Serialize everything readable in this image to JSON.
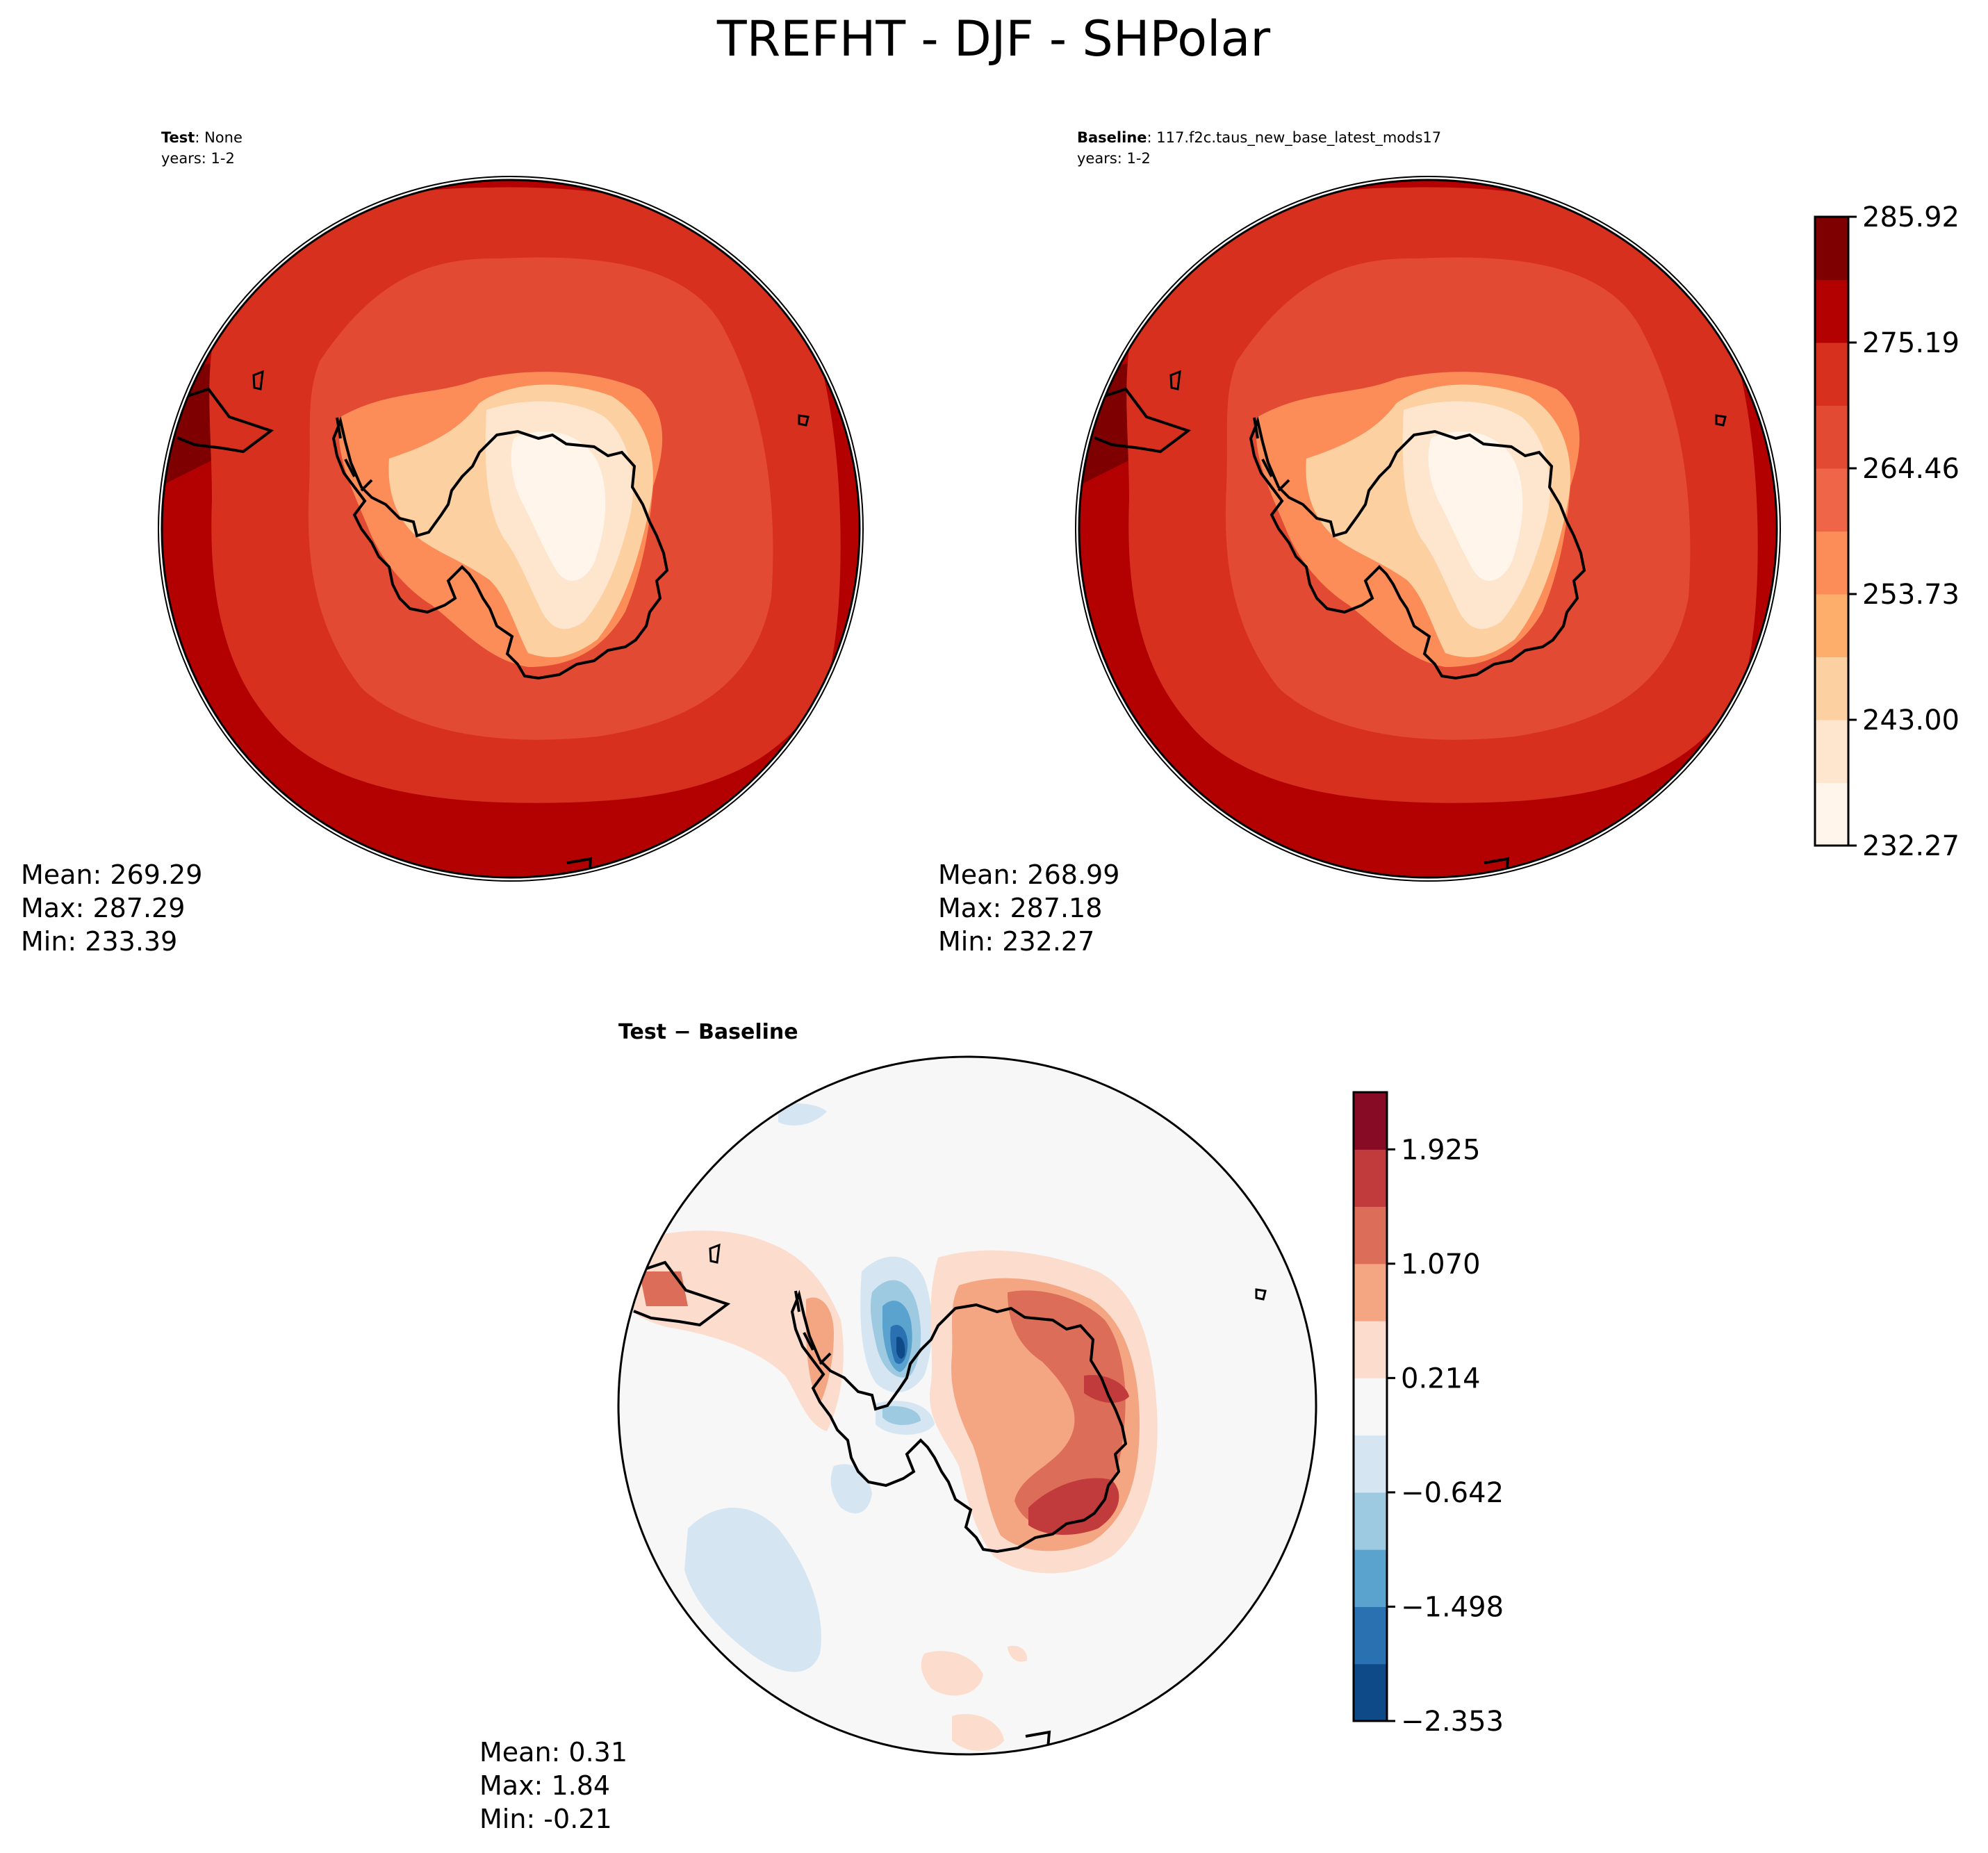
{
  "figure": {
    "title": "TREFHT - DJF - SHPolar"
  },
  "panels": {
    "test": {
      "label_bold": "Test",
      "label_rest": ": None",
      "years": "years: 1-2",
      "stats": {
        "mean": "Mean: 269.29",
        "max": "Max: 287.29",
        "min": "Min: 233.39"
      }
    },
    "baseline": {
      "label_bold": "Baseline",
      "label_rest": ": 117.f2c.taus_new_base_latest_mods17",
      "years": "years: 1-2",
      "stats": {
        "mean": "Mean: 268.99",
        "max": "Max: 287.18",
        "min": "Min: 232.27"
      }
    },
    "diff": {
      "label": "Test − Baseline",
      "stats": {
        "mean": "Mean:  0.31",
        "max": "Max:  1.84",
        "min": "Min: -0.21"
      }
    }
  },
  "colorbars": {
    "main": {
      "ticks": [
        "232.27",
        "243.00",
        "253.73",
        "264.46",
        "275.19",
        "285.92"
      ],
      "colors": [
        "#fff5eb",
        "#fee6ce",
        "#fdd0a2",
        "#fdae6b",
        "#fc8d59",
        "#ef6548",
        "#e34a33",
        "#d7301f",
        "#b30000",
        "#7f0000"
      ]
    },
    "diff": {
      "ticks": [
        "−2.353",
        "−1.498",
        "−0.642",
        "0.214",
        "1.070",
        "1.925"
      ],
      "colors": [
        "#0d4a87",
        "#2a71b2",
        "#5ba3cf",
        "#9ecae1",
        "#d5e6f2",
        "#f7f7f7",
        "#fcdccc",
        "#f4a582",
        "#dc6d58",
        "#c23b3c",
        "#870b25"
      ]
    }
  }
}
